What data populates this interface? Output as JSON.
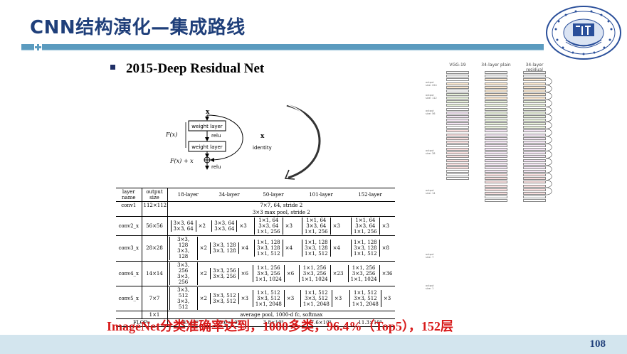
{
  "slide": {
    "title": "CNN结构演化—集成路线",
    "bullet": "2015-Deep Residual Net",
    "caption": "ImageNet分类准确率达到，1000多类，96.4%（Top5），152层",
    "page_number": "108",
    "colors": {
      "title": "#1f3f7a",
      "bar": "#5b9bbf",
      "caption": "#d81919",
      "footer": "#d3e5ee"
    }
  },
  "residual_block": {
    "input": "x",
    "layer1": "weight layer",
    "relu1": "relu",
    "layer2": "weight layer",
    "fx": "F(x)",
    "fx_plus_x": "F(x) + x",
    "relu2": "relu",
    "shortcut_x": "x",
    "shortcut_label": "identity"
  },
  "layer_table": {
    "headers": [
      "layer name",
      "output size",
      "18-layer",
      "34-layer",
      "50-layer",
      "101-layer",
      "152-layer"
    ],
    "conv1": {
      "name": "conv1",
      "size": "112×112",
      "desc": "7×7, 64, stride 2"
    },
    "pool_desc": "3×3 max pool, stride 2",
    "stages": [
      {
        "name": "conv2_x",
        "size": "56×56",
        "blocks": [
          {
            "lines": [
              "3×3, 64",
              "3×3, 64"
            ],
            "mult": "×2"
          },
          {
            "lines": [
              "3×3, 64",
              "3×3, 64"
            ],
            "mult": "×3"
          },
          {
            "lines": [
              "1×1, 64",
              "3×3, 64",
              "1×1, 256"
            ],
            "mult": "×3"
          },
          {
            "lines": [
              "1×1, 64",
              "3×3, 64",
              "1×1, 256"
            ],
            "mult": "×3"
          },
          {
            "lines": [
              "1×1, 64",
              "3×3, 64",
              "1×1, 256"
            ],
            "mult": "×3"
          }
        ]
      },
      {
        "name": "conv3_x",
        "size": "28×28",
        "blocks": [
          {
            "lines": [
              "3×3, 128",
              "3×3, 128"
            ],
            "mult": "×2"
          },
          {
            "lines": [
              "3×3, 128",
              "3×3, 128"
            ],
            "mult": "×4"
          },
          {
            "lines": [
              "1×1, 128",
              "3×3, 128",
              "1×1, 512"
            ],
            "mult": "×4"
          },
          {
            "lines": [
              "1×1, 128",
              "3×3, 128",
              "1×1, 512"
            ],
            "mult": "×4"
          },
          {
            "lines": [
              "1×1, 128",
              "3×3, 128",
              "1×1, 512"
            ],
            "mult": "×8"
          }
        ]
      },
      {
        "name": "conv4_x",
        "size": "14×14",
        "blocks": [
          {
            "lines": [
              "3×3, 256",
              "3×3, 256"
            ],
            "mult": "×2"
          },
          {
            "lines": [
              "3×3, 256",
              "3×3, 256"
            ],
            "mult": "×6"
          },
          {
            "lines": [
              "1×1, 256",
              "3×3, 256",
              "1×1, 1024"
            ],
            "mult": "×6"
          },
          {
            "lines": [
              "1×1, 256",
              "3×3, 256",
              "1×1, 1024"
            ],
            "mult": "×23"
          },
          {
            "lines": [
              "1×1, 256",
              "3×3, 256",
              "1×1, 1024"
            ],
            "mult": "×36"
          }
        ]
      },
      {
        "name": "conv5_x",
        "size": "7×7",
        "blocks": [
          {
            "lines": [
              "3×3, 512",
              "3×3, 512"
            ],
            "mult": "×2"
          },
          {
            "lines": [
              "3×3, 512",
              "3×3, 512"
            ],
            "mult": "×3"
          },
          {
            "lines": [
              "1×1, 512",
              "3×3, 512",
              "1×1, 2048"
            ],
            "mult": "×3"
          },
          {
            "lines": [
              "1×1, 512",
              "3×3, 512",
              "1×1, 2048"
            ],
            "mult": "×3"
          },
          {
            "lines": [
              "1×1, 512",
              "3×3, 512",
              "1×1, 2048"
            ],
            "mult": "×3"
          }
        ]
      }
    ],
    "final": {
      "size": "1×1",
      "desc": "average pool, 1000-d fc, softmax"
    },
    "flops": {
      "label": "FLOPs",
      "values": [
        "1.8×10⁹",
        "3.6×10⁹",
        "3.8×10⁹",
        "7.6×10⁹",
        "11.3×10⁹"
      ]
    }
  },
  "architectures": {
    "headers": [
      "VGG-19",
      "34-layer plain",
      "34-layer residual"
    ],
    "side_labels": [
      "output size: 224",
      "output size: 112",
      "output size: 56",
      "output size: 28",
      "output size: 14",
      "output size: 7",
      "output size: 1"
    ]
  }
}
